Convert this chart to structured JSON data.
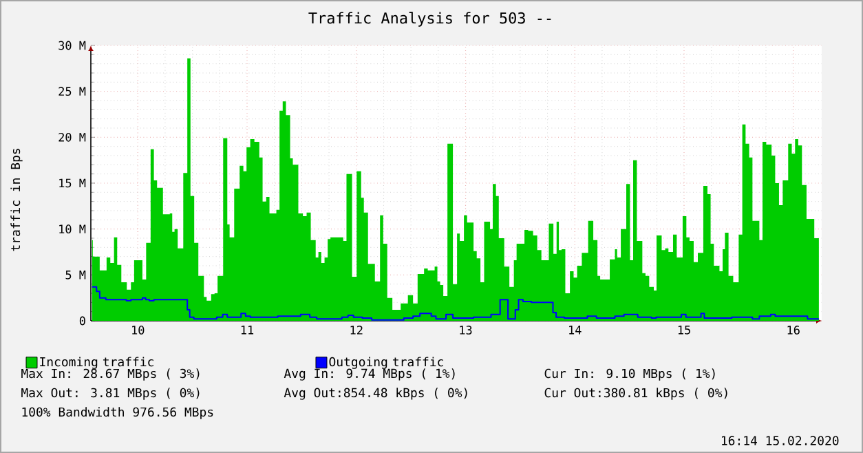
{
  "chart_data": {
    "type": "step",
    "title": "Traffic Analysis for 503 --",
    "ylabel": "traffic in Bps",
    "xlim": [
      9.57,
      16.26
    ],
    "ylim": [
      0,
      30
    ],
    "xticks": [
      10,
      11,
      12,
      13,
      14,
      15,
      16
    ],
    "yticks": [
      0,
      {
        "value": 5,
        "label": "5 M"
      },
      {
        "value": 10,
        "label": "10 M"
      },
      {
        "value": 15,
        "label": "15 M"
      },
      {
        "value": 20,
        "label": "20 M"
      },
      {
        "value": 25,
        "label": "25 M"
      },
      {
        "value": 30,
        "label": "30 M"
      }
    ],
    "grid": true,
    "legend": "bottom",
    "series": [
      {
        "name": "Incoming traffic",
        "type": "area",
        "color": "#00cc00",
        "x": [
          9.581,
          9.588,
          9.651,
          9.714,
          9.748,
          9.782,
          9.811,
          9.849,
          9.899,
          9.937,
          9.966,
          10.042,
          10.076,
          10.117,
          10.147,
          10.176,
          10.23,
          10.293,
          10.315,
          10.336,
          10.365,
          10.416,
          10.453,
          10.482,
          10.516,
          10.554,
          10.605,
          10.63,
          10.671,
          10.702,
          10.73,
          10.781,
          10.819,
          10.84,
          10.882,
          10.932,
          10.966,
          10.995,
          11.029,
          11.067,
          11.112,
          11.142,
          11.175,
          11.205,
          11.224,
          11.268,
          11.297,
          11.326,
          11.356,
          11.394,
          11.419,
          11.469,
          11.511,
          11.545,
          11.583,
          11.628,
          11.653,
          11.679,
          11.709,
          11.738,
          11.763,
          11.826,
          11.88,
          11.91,
          11.961,
          12.003,
          12.044,
          12.069,
          12.107,
          12.17,
          12.217,
          12.246,
          12.283,
          12.33,
          12.406,
          12.472,
          12.519,
          12.561,
          12.62,
          12.654,
          12.717,
          12.742,
          12.767,
          12.796,
          12.834,
          12.884,
          12.922,
          12.947,
          12.985,
          13.014,
          13.073,
          13.102,
          13.136,
          13.17,
          13.224,
          13.249,
          13.278,
          13.304,
          13.354,
          13.401,
          13.442,
          13.467,
          13.539,
          13.573,
          13.618,
          13.656,
          13.694,
          13.762,
          13.804,
          13.833,
          13.854,
          13.879,
          13.913,
          13.955,
          13.989,
          14.021,
          14.064,
          14.122,
          14.169,
          14.207,
          14.232,
          14.32,
          14.367,
          14.387,
          14.421,
          14.471,
          14.505,
          14.534,
          14.568,
          14.618,
          14.647,
          14.681,
          14.723,
          14.748,
          14.795,
          14.827,
          14.857,
          14.899,
          14.933,
          14.987,
          15.021,
          15.05,
          15.088,
          15.126,
          15.176,
          15.214,
          15.243,
          15.273,
          15.324,
          15.353,
          15.374,
          15.407,
          15.45,
          15.5,
          15.533,
          15.563,
          15.596,
          15.626,
          15.689,
          15.718,
          15.752,
          15.801,
          15.834,
          15.869,
          15.903,
          15.953,
          15.986,
          16.016,
          16.045,
          16.079,
          16.121,
          16.192,
          16.234
        ],
        "values": [
          8.8,
          7.0,
          5.5,
          6.9,
          6.3,
          9.1,
          6.1,
          4.2,
          3.4,
          4.2,
          6.6,
          4.5,
          8.5,
          18.7,
          15.3,
          14.5,
          11.6,
          11.7,
          9.7,
          10.0,
          7.9,
          16.1,
          28.6,
          13.6,
          8.5,
          4.9,
          2.6,
          2.2,
          2.9,
          3.0,
          4.9,
          19.9,
          10.5,
          9.1,
          14.4,
          16.9,
          16.3,
          18.9,
          19.8,
          19.5,
          17.8,
          13.0,
          13.5,
          11.7,
          11.7,
          12.1,
          22.9,
          23.9,
          22.4,
          17.7,
          17.0,
          11.7,
          11.4,
          11.8,
          8.8,
          6.9,
          7.5,
          6.3,
          6.9,
          8.9,
          9.1,
          9.1,
          8.7,
          16.0,
          4.8,
          16.3,
          13.4,
          11.8,
          6.2,
          4.3,
          11.5,
          8.4,
          2.5,
          1.2,
          1.9,
          2.8,
          1.9,
          5.1,
          5.7,
          5.5,
          5.9,
          4.3,
          3.9,
          2.7,
          19.3,
          4.0,
          9.5,
          8.7,
          11.5,
          10.7,
          7.6,
          6.8,
          4.2,
          10.8,
          10.0,
          14.9,
          13.6,
          9.0,
          5.9,
          3.7,
          6.6,
          8.4,
          9.9,
          9.8,
          9.3,
          7.7,
          6.6,
          10.6,
          7.3,
          10.8,
          7.7,
          7.8,
          3.0,
          5.4,
          4.7,
          6.0,
          7.4,
          10.9,
          8.8,
          4.9,
          4.5,
          6.7,
          7.8,
          6.9,
          10.0,
          14.9,
          6.6,
          17.5,
          8.7,
          5.2,
          4.9,
          3.7,
          3.3,
          9.3,
          7.7,
          7.9,
          7.5,
          9.4,
          6.9,
          11.4,
          9.1,
          8.7,
          6.4,
          7.4,
          14.7,
          13.8,
          8.4,
          6.0,
          5.4,
          7.8,
          9.6,
          4.9,
          4.2,
          9.4,
          21.4,
          19.3,
          17.8,
          10.9,
          8.8,
          19.5,
          19.2,
          18.0,
          15.0,
          12.6,
          15.3,
          19.3,
          18.2,
          19.8,
          19.1,
          14.8,
          11.1,
          9.0,
          9.0
        ]
      },
      {
        "name": "Outgoing traffic",
        "color": "#0000ff",
        "x": [
          9.581,
          9.622,
          9.651,
          9.707,
          9.895,
          9.937,
          10.042,
          10.072,
          10.105,
          10.147,
          10.453,
          10.475,
          10.513,
          10.722,
          10.777,
          10.819,
          10.945,
          10.986,
          11.029,
          11.133,
          11.281,
          11.49,
          11.574,
          11.637,
          11.868,
          11.924,
          11.974,
          12.055,
          12.141,
          12.435,
          12.519,
          12.582,
          12.686,
          12.729,
          12.821,
          12.884,
          13.073,
          13.233,
          13.316,
          13.388,
          13.455,
          13.485,
          13.526,
          13.602,
          13.8,
          13.829,
          13.904,
          14.115,
          14.198,
          14.367,
          14.45,
          14.576,
          14.702,
          14.744,
          14.975,
          15.017,
          15.155,
          15.185,
          15.437,
          15.626,
          15.689,
          15.793,
          15.834,
          16.13,
          16.234
        ],
        "values": [
          3.7,
          3.2,
          2.5,
          2.3,
          2.2,
          2.3,
          2.5,
          2.3,
          2.2,
          2.3,
          1.2,
          0.4,
          0.2,
          0.4,
          0.7,
          0.4,
          0.8,
          0.5,
          0.4,
          0.4,
          0.5,
          0.7,
          0.4,
          0.2,
          0.4,
          0.6,
          0.4,
          0.3,
          0.1,
          0.3,
          0.5,
          0.8,
          0.5,
          0.2,
          0.7,
          0.3,
          0.4,
          0.7,
          2.3,
          0.2,
          1.2,
          2.3,
          2.1,
          2.0,
          0.9,
          0.4,
          0.3,
          0.5,
          0.3,
          0.5,
          0.7,
          0.4,
          0.3,
          0.4,
          0.7,
          0.4,
          0.8,
          0.3,
          0.4,
          0.2,
          0.5,
          0.7,
          0.5,
          0.2,
          0.2
        ]
      }
    ],
    "annotations": [
      "Max In: 28.67 MBps ( 3%)",
      "Avg In: 9.74 MBps ( 1%)",
      "Cur In: 9.10 MBps ( 1%)",
      "Max Out: 3.81 MBps ( 0%)",
      "Avg Out:854.48 kBps ( 0%)",
      "Cur Out:380.81 kBps ( 0%)",
      "100% Bandwidth 976.56 MBps",
      "16:14 15.02.2020"
    ]
  }
}
